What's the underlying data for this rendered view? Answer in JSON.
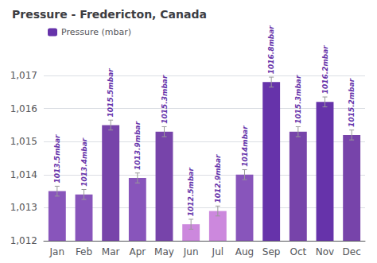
{
  "chart_data": {
    "type": "bar",
    "title": "Pressure - Fredericton, Canada",
    "categories": [
      "Jan",
      "Feb",
      "Mar",
      "Apr",
      "May",
      "Jun",
      "Jul",
      "Aug",
      "Sep",
      "Oct",
      "Nov",
      "Dec"
    ],
    "series": [
      {
        "name": "Pressure (mbar)",
        "color": "#6633aa",
        "colors": [
          "#8855bb",
          "#8855bb",
          "#7744aa",
          "#8855bb",
          "#7744aa",
          "#cc88dd",
          "#cc88dd",
          "#8855bb",
          "#6633aa",
          "#7744aa",
          "#6633aa",
          "#7744aa"
        ],
        "values": [
          1013.5,
          1013.4,
          1015.5,
          1013.9,
          1015.3,
          1012.5,
          1012.9,
          1014.0,
          1016.8,
          1015.3,
          1016.2,
          1015.2
        ],
        "error": [
          0.15,
          0.15,
          0.15,
          0.15,
          0.15,
          0.15,
          0.15,
          0.15,
          0.15,
          0.15,
          0.15,
          0.15
        ],
        "value_labels": [
          "1013.5mbar",
          "1013.4mbar",
          "1015.5mbar",
          "1013.9mbar",
          "1015.3mbar",
          "1012.5mbar",
          "1012.9mbar",
          "1014mbar",
          "1016.8mbar",
          "1015.3mbar",
          "1016.2mbar",
          "1015.2mbar"
        ]
      }
    ],
    "ylim": [
      1012,
      1017
    ],
    "yticks": [
      {
        "value": 1012,
        "label": "1,012"
      },
      {
        "value": 1013,
        "label": "1,013"
      },
      {
        "value": 1014,
        "label": "1,014"
      },
      {
        "value": 1015,
        "label": "1,015"
      },
      {
        "value": 1016,
        "label": "1,016"
      },
      {
        "value": 1017,
        "label": "1,017"
      }
    ],
    "grid": true,
    "legend": "upper left",
    "data_labels": true
  }
}
